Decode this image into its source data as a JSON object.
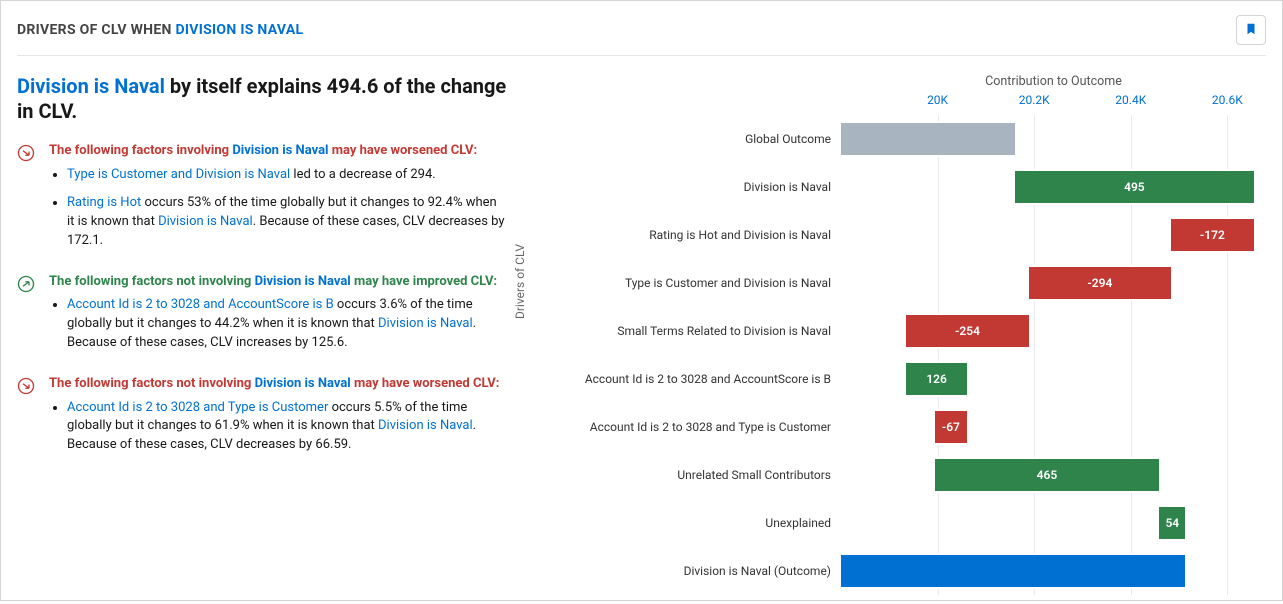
{
  "header": {
    "title_prefix": "DRIVERS OF CLV WHEN ",
    "title_hl": "DIVISION IS NAVAL",
    "bookmark_icon": "bookmark-icon"
  },
  "headline": {
    "hl": "Division is Naval",
    "rest": " by itself explains 494.6 of the change in CLV."
  },
  "sections": [
    {
      "tone": "bad",
      "title_pre": "The following factors involving ",
      "title_hl": "Division is Naval",
      "title_post": " may have worsened CLV:",
      "bullets": [
        [
          {
            "hl": true,
            "t": "Type is Customer and Division is Naval"
          },
          {
            "hl": false,
            "t": " led to a decrease of 294."
          }
        ],
        [
          {
            "hl": true,
            "t": "Rating is Hot"
          },
          {
            "hl": false,
            "t": " occurs 53% of the time globally but it changes to 92.4% when it is known that "
          },
          {
            "hl": true,
            "t": "Division is Naval"
          },
          {
            "hl": false,
            "t": ". Because of these cases, CLV decreases by 172.1."
          }
        ]
      ]
    },
    {
      "tone": "good",
      "title_pre": "The following factors not involving ",
      "title_hl": "Division is Naval",
      "title_post": " may have improved CLV:",
      "bullets": [
        [
          {
            "hl": true,
            "t": "Account Id is 2 to 3028 and AccountScore is B"
          },
          {
            "hl": false,
            "t": " occurs 3.6% of the time globally but it changes to 44.2% when it is known that "
          },
          {
            "hl": true,
            "t": "Division is Naval"
          },
          {
            "hl": false,
            "t": ". Because of these cases, CLV increases by 125.6."
          }
        ]
      ]
    },
    {
      "tone": "bad",
      "title_pre": "The following factors not involving ",
      "title_hl": "Division is Naval",
      "title_post": " may have worsened CLV:",
      "bullets": [
        [
          {
            "hl": true,
            "t": "Account Id is 2 to 3028 and Type is Customer"
          },
          {
            "hl": false,
            "t": " occurs 5.5% of the time globally but it changes to 61.9% when it is known that "
          },
          {
            "hl": true,
            "t": "Division is Naval"
          },
          {
            "hl": false,
            "t": ". Because of these cases, CLV decreases by 66.59."
          }
        ]
      ]
    }
  ],
  "chart": {
    "type": "waterfall",
    "title": "Contribution to Outcome",
    "ylabel": "Drivers of CLV",
    "xdomain": [
      19800,
      20680
    ],
    "xticks": [
      {
        "v": 20000,
        "label": "20K"
      },
      {
        "v": 20200,
        "label": "20.2K"
      },
      {
        "v": 20400,
        "label": "20.4K"
      },
      {
        "v": 20600,
        "label": "20.6K"
      }
    ],
    "gridline_color": "#eaeaea",
    "label_fontsize": 12,
    "title_fontsize": 12.5,
    "colors": {
      "neutral": "#a8b4c0",
      "pos": "#2e844a",
      "neg": "#c23934",
      "outcome": "#0070d2"
    },
    "rows": [
      {
        "label": "Global Outcome",
        "start": 19800,
        "end": 20160,
        "kind": "neutral",
        "text": ""
      },
      {
        "label": "Division is Naval",
        "start": 20160,
        "end": 20655,
        "kind": "pos",
        "text": "495"
      },
      {
        "label": "Rating is Hot and Division is Naval",
        "start": 20483,
        "end": 20655,
        "kind": "neg",
        "text": "-172"
      },
      {
        "label": "Type is Customer and Division is Naval",
        "start": 20189,
        "end": 20483,
        "kind": "neg",
        "text": "-294"
      },
      {
        "label": "Small Terms Related to Division is Naval",
        "start": 19935,
        "end": 20189,
        "kind": "neg",
        "text": "-254"
      },
      {
        "label": "Account Id is 2 to 3028 and AccountScore is B",
        "start": 19935,
        "end": 20061,
        "kind": "pos",
        "text": "126"
      },
      {
        "label": "Account Id is 2 to 3028 and Type is Customer",
        "start": 19994,
        "end": 20061,
        "kind": "neg",
        "text": "-67"
      },
      {
        "label": "Unrelated Small Contributors",
        "start": 19994,
        "end": 20459,
        "kind": "pos",
        "text": "465"
      },
      {
        "label": "Unexplained",
        "start": 20459,
        "end": 20513,
        "kind": "pos",
        "text": "54"
      },
      {
        "label": "Division is Naval (Outcome)",
        "start": 19800,
        "end": 20513,
        "kind": "outcome",
        "text": ""
      }
    ]
  }
}
